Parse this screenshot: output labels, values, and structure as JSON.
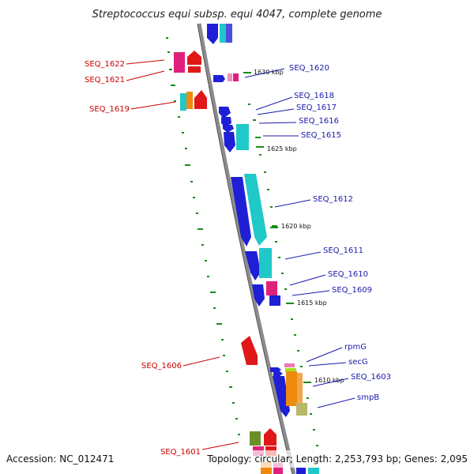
{
  "title": "Streptococcus equi subsp. equi 4047, complete genome",
  "accession": "Accession: NC_012471",
  "summary": "Topology: circular; Length: 2,253,793 bp; Genes: 2,095",
  "colors": {
    "blue": "#1f1fd6",
    "cyan": "#20c8c8",
    "red": "#e01818",
    "pink": "#e0207a",
    "orange": "#ee8a10",
    "olive": "#6a8f2a",
    "lime": "#a6e020",
    "backbone": "#8c8c8c",
    "tick_green": "#1a8a1a",
    "label_red": "#cc0000",
    "label_blue": "#1a1aaa"
  },
  "scale_ticks": [
    "1630 kbp",
    "1625 kbp",
    "1620 kbp",
    "1615 kbp",
    "1610 kbp"
  ],
  "left_labels": [
    "SEQ_1622",
    "SEQ_1621",
    "SEQ_1619",
    "SEQ_1606",
    "SEQ_1601"
  ],
  "right_labels": [
    "SEQ_1620",
    "SEQ_1618",
    "SEQ_1617",
    "SEQ_1616",
    "SEQ_1615",
    "SEQ_1612",
    "SEQ_1611",
    "SEQ_1610",
    "SEQ_1609",
    "rpmG",
    "secG",
    "SEQ_1603",
    "smpB"
  ]
}
